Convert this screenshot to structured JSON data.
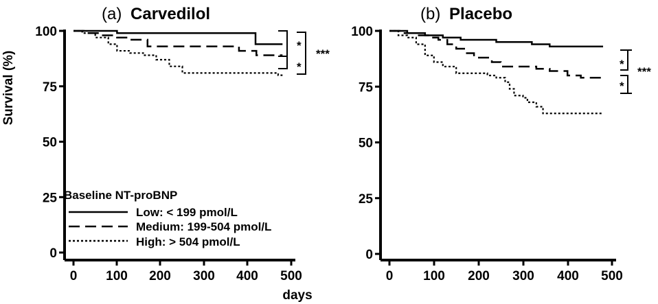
{
  "chart_data": [
    {
      "type": "line",
      "title_prefix": "(a)",
      "title": "Carvedilol",
      "xlabel": "days",
      "ylabel": "Survival (%)",
      "xlim": [
        0,
        500
      ],
      "ylim": [
        0,
        100
      ],
      "xticks": [
        "0",
        "100",
        "200",
        "300",
        "400",
        "500"
      ],
      "yticks": [
        "0",
        "25",
        "50",
        "75",
        "100"
      ],
      "legend_title": "Baseline NT-proBNP",
      "series": [
        {
          "name": "Low: < 199 pmol/L",
          "style": "solid",
          "points": [
            [
              0,
              100
            ],
            [
              20,
              100
            ],
            [
              100,
              99
            ],
            [
              200,
              99
            ],
            [
              300,
              99
            ],
            [
              418,
              99
            ],
            [
              418,
              94
            ],
            [
              480,
              94
            ]
          ]
        },
        {
          "name": "Medium: 199-504 pmol/L",
          "style": "dashed",
          "points": [
            [
              0,
              100
            ],
            [
              30,
              99
            ],
            [
              60,
              98
            ],
            [
              100,
              97
            ],
            [
              130,
              96
            ],
            [
              170,
              93
            ],
            [
              250,
              93
            ],
            [
              380,
              93
            ],
            [
              380,
              91
            ],
            [
              420,
              91
            ],
            [
              420,
              89
            ],
            [
              480,
              89
            ]
          ]
        },
        {
          "name": "High: > 504 pmol/L",
          "style": "dotted",
          "points": [
            [
              0,
              100
            ],
            [
              20,
              99
            ],
            [
              50,
              97
            ],
            [
              80,
              94
            ],
            [
              100,
              91
            ],
            [
              130,
              90
            ],
            [
              160,
              89
            ],
            [
              190,
              87
            ],
            [
              220,
              84
            ],
            [
              250,
              81
            ],
            [
              300,
              81
            ],
            [
              400,
              81
            ],
            [
              470,
              81
            ],
            [
              470,
              80
            ],
            [
              480,
              80
            ]
          ]
        }
      ],
      "significance": [
        "*",
        "*",
        "***"
      ]
    },
    {
      "type": "line",
      "title_prefix": "(b)",
      "title": "Placebo",
      "xlabel": "",
      "ylabel": "",
      "xlim": [
        0,
        500
      ],
      "ylim": [
        0,
        100
      ],
      "xticks": [
        "0",
        "100",
        "200",
        "300",
        "400",
        "500"
      ],
      "yticks": [
        "0",
        "25",
        "50",
        "75",
        "100"
      ],
      "series": [
        {
          "name": "Low",
          "style": "solid",
          "points": [
            [
              0,
              100
            ],
            [
              20,
              100
            ],
            [
              40,
              99
            ],
            [
              80,
              98
            ],
            [
              120,
              97
            ],
            [
              160,
              96
            ],
            [
              200,
              96
            ],
            [
              240,
              95
            ],
            [
              280,
              95
            ],
            [
              320,
              94
            ],
            [
              360,
              93
            ],
            [
              400,
              93
            ],
            [
              440,
              93
            ],
            [
              480,
              93
            ]
          ]
        },
        {
          "name": "Medium",
          "style": "dashed",
          "points": [
            [
              0,
              100
            ],
            [
              30,
              99
            ],
            [
              60,
              98
            ],
            [
              90,
              97
            ],
            [
              110,
              96
            ],
            [
              130,
              94
            ],
            [
              150,
              92
            ],
            [
              170,
              90
            ],
            [
              190,
              88
            ],
            [
              210,
              88
            ],
            [
              230,
              88
            ],
            [
              230,
              86
            ],
            [
              250,
              84
            ],
            [
              300,
              84
            ],
            [
              330,
              83
            ],
            [
              360,
              82
            ],
            [
              380,
              82
            ],
            [
              400,
              80
            ],
            [
              430,
              79
            ],
            [
              480,
              79
            ]
          ]
        },
        {
          "name": "High",
          "style": "dotted",
          "points": [
            [
              0,
              100
            ],
            [
              20,
              98
            ],
            [
              40,
              97
            ],
            [
              60,
              94
            ],
            [
              80,
              89
            ],
            [
              100,
              86
            ],
            [
              120,
              84
            ],
            [
              150,
              81
            ],
            [
              200,
              81
            ],
            [
              220,
              80
            ],
            [
              240,
              79
            ],
            [
              260,
              77
            ],
            [
              270,
              74
            ],
            [
              280,
              71
            ],
            [
              300,
              70
            ],
            [
              310,
              68
            ],
            [
              330,
              66
            ],
            [
              345,
              63
            ],
            [
              380,
              63
            ],
            [
              480,
              63
            ]
          ]
        }
      ],
      "significance": [
        "*",
        "*",
        "***"
      ]
    }
  ]
}
